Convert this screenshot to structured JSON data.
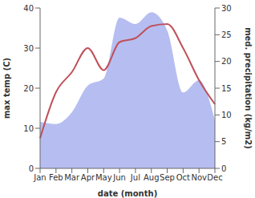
{
  "chart_data": {
    "type": "line",
    "categories": [
      "Jan",
      "Feb",
      "Mar",
      "Apr",
      "May",
      "Jun",
      "Jul",
      "Aug",
      "Sep",
      "Oct",
      "Nov",
      "Dec"
    ],
    "x_label": "date (month)",
    "y_label": "max temp (C)",
    "y2_label": "med. precipitation (kg/m2)",
    "ylim": [
      0,
      40
    ],
    "yticks": [
      0,
      10,
      20,
      30,
      40
    ],
    "y2lim": [
      0,
      30
    ],
    "y2ticks": [
      0,
      5,
      10,
      15,
      20,
      25,
      30
    ],
    "grid": false,
    "series": [
      {
        "name": "med. precipitation (kg/m2)",
        "type": "area",
        "axis": "y2",
        "color": "#a9b3ee",
        "values": [
          8.7,
          8.3,
          10.5,
          15.5,
          16.8,
          28.2,
          27,
          29.2,
          25.8,
          14.2,
          16.5,
          9
        ]
      },
      {
        "name": "max temp (C)",
        "type": "line",
        "axis": "y",
        "color": "#c0505a",
        "values": [
          7.5,
          19,
          24,
          30,
          24.5,
          31.5,
          32.5,
          35.5,
          36,
          30,
          22,
          16
        ]
      }
    ]
  }
}
